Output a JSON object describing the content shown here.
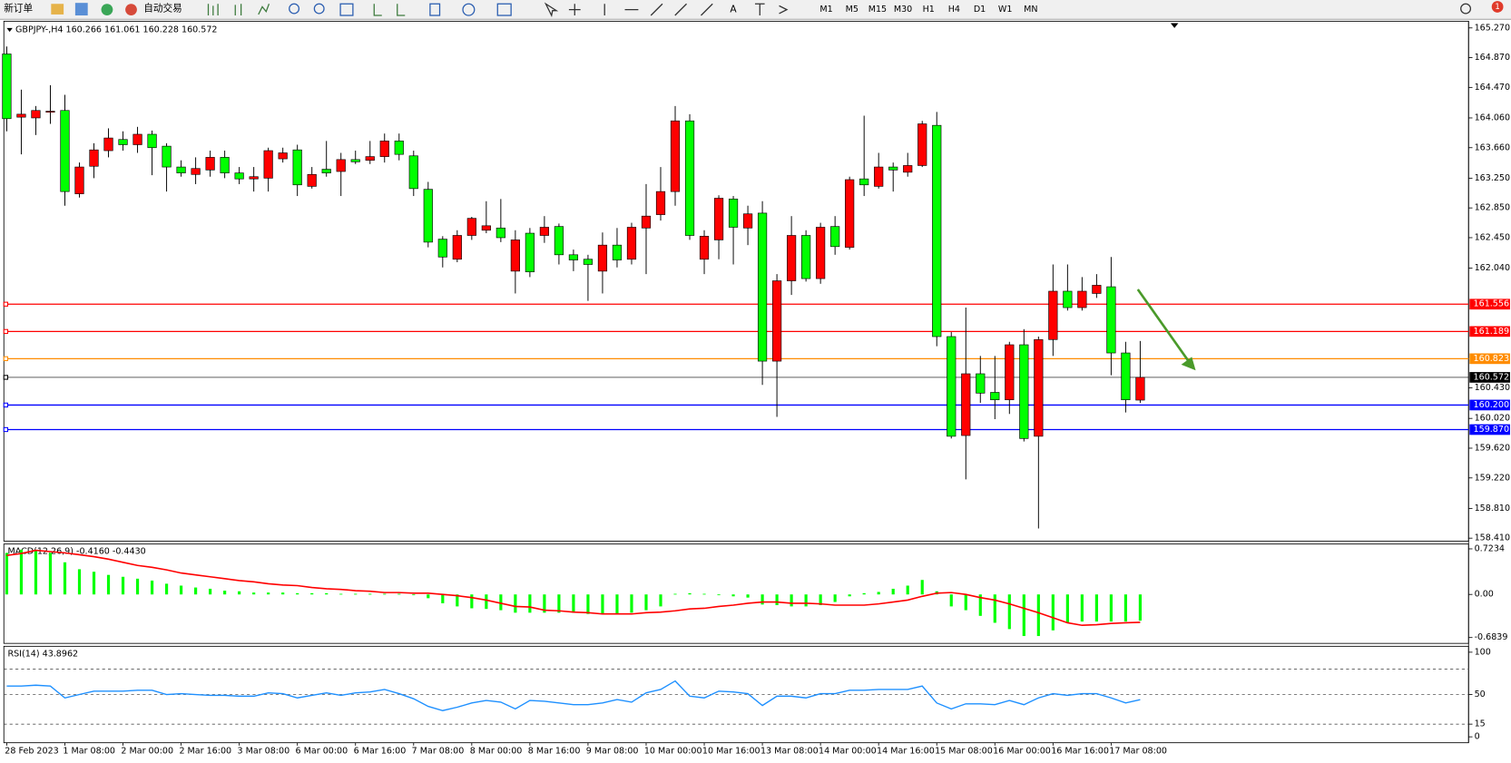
{
  "toolbar": {
    "new_order": "新订单",
    "auto_trading": "自动交易",
    "timeframes": [
      "M1",
      "M5",
      "M15",
      "M30",
      "H1",
      "H4",
      "D1",
      "W1",
      "MN"
    ],
    "notifications": 1
  },
  "chart_data": [
    {
      "type": "candlestick",
      "title": "GBPJPY-,H4  160.266 161.061 160.228 160.572",
      "up_color": "#ff0000",
      "down_color": "#00ff00",
      "categories": [
        "28 Feb 2023",
        null,
        null,
        null,
        "1 Mar 08:00",
        null,
        null,
        null,
        "2 Mar 00:00",
        null,
        null,
        null,
        "2 Mar 16:00",
        null,
        null,
        null,
        "3 Mar 08:00",
        null,
        null,
        null,
        "6 Mar 00:00",
        null,
        null,
        null,
        "6 Mar 16:00",
        null,
        null,
        null,
        "7 Mar 08:00",
        null,
        null,
        null,
        "8 Mar 00:00",
        null,
        null,
        null,
        "8 Mar 16:00",
        null,
        null,
        null,
        "9 Mar 08:00",
        null,
        null,
        null,
        "10 Mar 00:00",
        null,
        null,
        null,
        "10 Mar 16:00",
        null,
        null,
        null,
        "13 Mar 08:00",
        null,
        null,
        null,
        "14 Mar 00:00",
        null,
        null,
        null,
        "14 Mar 16:00",
        null,
        null,
        null,
        "15 Mar 08:00",
        null,
        null,
        null,
        "16 Mar 00:00",
        null,
        null,
        null,
        "16 Mar 16:00",
        null,
        null,
        null,
        "17 Mar 08:00",
        null,
        null
      ],
      "open": [
        164.92,
        164.07,
        164.06,
        164.14,
        164.16,
        163.04,
        163.41,
        163.62,
        163.77,
        163.7,
        163.84,
        163.68,
        163.4,
        163.3,
        163.36,
        163.53,
        163.32,
        163.24,
        163.25,
        163.51,
        163.63,
        163.14,
        163.37,
        163.34,
        163.5,
        163.49,
        163.54,
        163.75,
        163.55,
        163.1,
        162.43,
        162.16,
        162.48,
        162.55,
        162.58,
        162.0,
        162.51,
        162.48,
        162.6,
        162.22,
        162.16,
        162.0,
        162.35,
        162.16,
        162.58,
        162.76,
        163.07,
        164.02,
        162.16,
        162.42,
        162.97,
        162.58,
        162.78,
        160.79,
        161.87,
        162.48,
        161.9,
        162.6,
        162.32,
        163.24,
        163.14,
        163.4,
        163.33,
        163.42,
        163.96,
        161.12,
        159.79,
        160.62,
        160.37,
        160.27,
        161.01,
        159.78,
        161.08,
        161.73,
        161.51,
        161.7,
        161.79,
        160.9,
        160.266
      ],
      "high": [
        165.02,
        164.44,
        164.22,
        164.5,
        164.37,
        163.46,
        163.72,
        163.92,
        163.88,
        163.94,
        163.89,
        163.72,
        163.49,
        163.53,
        163.62,
        163.62,
        163.4,
        163.4,
        163.66,
        163.66,
        163.7,
        163.4,
        163.75,
        163.59,
        163.62,
        163.75,
        163.85,
        163.85,
        163.62,
        163.2,
        162.47,
        162.55,
        162.73,
        162.94,
        162.97,
        162.55,
        162.58,
        162.74,
        162.64,
        162.29,
        162.22,
        162.52,
        162.58,
        162.65,
        163.17,
        163.4,
        164.22,
        164.11,
        162.55,
        163.02,
        163.01,
        162.88,
        162.94,
        161.96,
        162.74,
        162.55,
        162.65,
        162.74,
        163.27,
        164.09,
        163.59,
        163.46,
        163.59,
        164.02,
        164.14,
        161.18,
        161.51,
        160.86,
        160.86,
        161.05,
        161.22,
        161.12,
        162.09,
        162.09,
        161.92,
        161.96,
        162.19,
        161.05,
        161.061
      ],
      "low": [
        163.88,
        163.57,
        163.83,
        163.98,
        162.88,
        162.99,
        163.25,
        163.53,
        163.62,
        163.59,
        163.29,
        163.07,
        163.27,
        163.17,
        163.27,
        163.25,
        163.17,
        163.07,
        163.07,
        163.46,
        163.01,
        163.11,
        163.27,
        163.01,
        163.44,
        163.44,
        163.46,
        163.49,
        163.01,
        162.32,
        162.05,
        162.12,
        162.42,
        162.51,
        162.39,
        161.7,
        161.92,
        162.38,
        162.09,
        162.0,
        161.6,
        161.7,
        162.05,
        162.09,
        161.96,
        162.68,
        162.88,
        162.42,
        161.96,
        162.16,
        162.09,
        162.35,
        160.47,
        160.04,
        161.68,
        161.86,
        161.83,
        162.22,
        162.29,
        163.01,
        163.11,
        163.07,
        163.27,
        163.4,
        160.99,
        159.75,
        159.2,
        160.23,
        160.01,
        160.08,
        159.71,
        158.54,
        160.86,
        161.47,
        161.47,
        161.64,
        160.6,
        160.1,
        160.228
      ],
      "close": [
        164.05,
        164.11,
        164.16,
        164.15,
        163.07,
        163.4,
        163.63,
        163.79,
        163.7,
        163.84,
        163.66,
        163.4,
        163.32,
        163.38,
        163.53,
        163.32,
        163.24,
        163.27,
        163.62,
        163.59,
        163.16,
        163.3,
        163.32,
        163.5,
        163.47,
        163.54,
        163.75,
        163.57,
        163.11,
        162.39,
        162.19,
        162.48,
        162.71,
        162.61,
        162.45,
        162.42,
        161.99,
        162.59,
        162.22,
        162.15,
        162.09,
        162.35,
        162.15,
        162.59,
        162.74,
        163.07,
        164.02,
        162.48,
        162.47,
        162.98,
        162.59,
        162.77,
        160.79,
        161.87,
        162.48,
        161.9,
        162.59,
        162.33,
        163.23,
        163.16,
        163.4,
        163.36,
        163.42,
        163.98,
        161.12,
        159.78,
        160.62,
        160.36,
        160.27,
        161.01,
        159.75,
        161.08,
        161.73,
        161.51,
        161.73,
        161.81,
        160.9,
        160.27,
        160.572
      ],
      "ylim": [
        158.37,
        165.36
      ],
      "yticks": [
        {
          "value": 165.27,
          "label": "165.270"
        },
        {
          "value": 164.87,
          "label": "164.870"
        },
        {
          "value": 164.47,
          "label": "164.470"
        },
        {
          "value": 164.06,
          "label": "164.060"
        },
        {
          "value": 163.66,
          "label": "163.660"
        },
        {
          "value": 163.25,
          "label": "163.250"
        },
        {
          "value": 162.85,
          "label": "162.850"
        },
        {
          "value": 162.45,
          "label": "162.450"
        },
        {
          "value": 162.04,
          "label": "162.040"
        },
        {
          "value": 160.43,
          "label": "160.430"
        },
        {
          "value": 160.02,
          "label": "160.020"
        },
        {
          "value": 159.62,
          "label": "159.620"
        },
        {
          "value": 159.22,
          "label": "159.220"
        },
        {
          "value": 158.81,
          "label": "158.810"
        },
        {
          "value": 158.41,
          "label": "158.410"
        }
      ],
      "hlines": [
        {
          "value": 161.556,
          "color": "#ff0000"
        },
        {
          "value": 161.189,
          "color": "#ff0000"
        },
        {
          "value": 160.823,
          "color": "#ff8c00"
        },
        {
          "value": 160.572,
          "color": "#000000"
        },
        {
          "value": 160.2,
          "label": "160.200",
          "color": "#0000ff"
        },
        {
          "value": 159.87,
          "label": "159.870",
          "color": "#0000ff"
        }
      ]
    },
    {
      "type": "macd",
      "title": "MACD(12,26,9) -0.4160 -0.4430",
      "histogram": {
        "color": "#00ff00",
        "values": [
          0.66,
          0.71,
          0.71,
          0.66,
          0.51,
          0.4,
          0.36,
          0.31,
          0.28,
          0.25,
          0.22,
          0.17,
          0.14,
          0.11,
          0.09,
          0.06,
          0.05,
          0.03,
          0.03,
          0.03,
          0.02,
          0.02,
          0.02,
          0.01,
          0.01,
          0.01,
          0.01,
          0.01,
          0,
          -0.06,
          -0.14,
          -0.19,
          -0.22,
          -0.23,
          -0.25,
          -0.29,
          -0.29,
          -0.29,
          -0.29,
          -0.29,
          -0.31,
          -0.31,
          -0.31,
          -0.29,
          -0.25,
          -0.19,
          0.01,
          0.02,
          0.01,
          0,
          -0.03,
          -0.05,
          -0.16,
          -0.17,
          -0.19,
          -0.19,
          -0.17,
          -0.12,
          -0.03,
          0.02,
          0.04,
          0.09,
          0.14,
          0.23,
          0.05,
          -0.19,
          -0.25,
          -0.34,
          -0.45,
          -0.55,
          -0.66,
          -0.66,
          -0.57,
          -0.45,
          -0.43,
          -0.43,
          -0.43,
          -0.43,
          -0.416
        ]
      },
      "signal": {
        "color": "#ff0000",
        "values": [
          0.62,
          0.65,
          0.7,
          0.68,
          0.66,
          0.63,
          0.6,
          0.56,
          0.51,
          0.46,
          0.43,
          0.39,
          0.34,
          0.31,
          0.28,
          0.25,
          0.22,
          0.2,
          0.17,
          0.15,
          0.14,
          0.11,
          0.09,
          0.08,
          0.06,
          0.05,
          0.03,
          0.03,
          0.02,
          0.02,
          0,
          -0.02,
          -0.05,
          -0.09,
          -0.14,
          -0.19,
          -0.2,
          -0.25,
          -0.26,
          -0.28,
          -0.29,
          -0.31,
          -0.31,
          -0.31,
          -0.29,
          -0.28,
          -0.26,
          -0.23,
          -0.22,
          -0.19,
          -0.17,
          -0.14,
          -0.12,
          -0.12,
          -0.14,
          -0.14,
          -0.15,
          -0.17,
          -0.17,
          -0.17,
          -0.15,
          -0.12,
          -0.09,
          -0.03,
          0.02,
          0.03,
          0,
          -0.05,
          -0.09,
          -0.15,
          -0.22,
          -0.29,
          -0.37,
          -0.45,
          -0.49,
          -0.48,
          -0.46,
          -0.45,
          -0.443
        ]
      },
      "ylim": [
        -0.777,
        0.8
      ],
      "yticks": [
        0.7234,
        {
          "value": 0,
          "label": "0.00"
        },
        -0.6839
      ]
    },
    {
      "type": "line",
      "title": "RSI(14) 43.8962",
      "color": "#1e90ff",
      "values": [
        60,
        60,
        61,
        60,
        46,
        50,
        54,
        54,
        54,
        55,
        55,
        50,
        51,
        50,
        49,
        49,
        48,
        48,
        52,
        51,
        46,
        49,
        52,
        49,
        52,
        53,
        56,
        51,
        45,
        36,
        31,
        35,
        40,
        43,
        41,
        33,
        43,
        42,
        40,
        38,
        38,
        40,
        44,
        41,
        52,
        56,
        66,
        48,
        46,
        54,
        53,
        51,
        37,
        48,
        48,
        46,
        51,
        51,
        55,
        55,
        56,
        56,
        56,
        60,
        40,
        33,
        39,
        39,
        38,
        43,
        38,
        46,
        51,
        49,
        51,
        51,
        46,
        40,
        43.8962
      ],
      "ylim": [
        -7,
        107
      ],
      "yticks": [
        100,
        50,
        15,
        0
      ],
      "levels": [
        80,
        50,
        15
      ]
    }
  ]
}
